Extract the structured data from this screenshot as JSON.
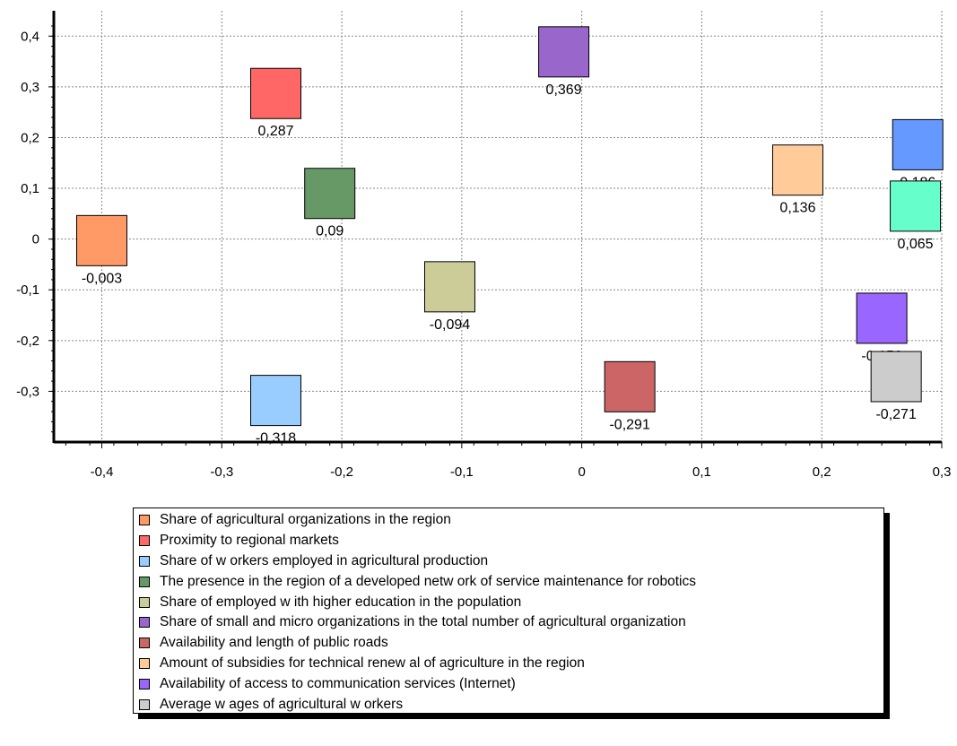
{
  "chart_data": {
    "type": "scatter",
    "title": "",
    "xlabel": "",
    "ylabel": "",
    "xlim": [
      -0.44,
      0.3
    ],
    "ylim": [
      -0.4,
      0.45
    ],
    "x_ticks": [
      "-0,4",
      "-0,3",
      "-0,2",
      "-0,1",
      "0",
      "0,1",
      "0,2",
      "0,3"
    ],
    "y_ticks": [
      "0,4",
      "0,3",
      "0,2",
      "0,1",
      "0",
      "-0,1",
      "-0,2",
      "-0,3"
    ],
    "grid": true,
    "marker": "square",
    "legend_position": "bottom",
    "points": [
      {
        "x": -0.4,
        "y": -0.003,
        "label": "-0,003",
        "color": "#ff9966"
      },
      {
        "x": -0.255,
        "y": 0.287,
        "label": "0,287",
        "color": "#ff6666"
      },
      {
        "x": -0.255,
        "y": -0.318,
        "label": "-0,318",
        "color": "#99ccff"
      },
      {
        "x": -0.21,
        "y": 0.09,
        "label": "0,09",
        "color": "#669966"
      },
      {
        "x": -0.11,
        "y": -0.094,
        "label": "-0,094",
        "color": "#cccc99"
      },
      {
        "x": -0.015,
        "y": 0.369,
        "label": "0,369",
        "color": "#9966cc"
      },
      {
        "x": 0.04,
        "y": -0.291,
        "label": "-0,291",
        "color": "#cc6666"
      },
      {
        "x": 0.18,
        "y": 0.136,
        "label": "0,136",
        "color": "#ffcc99"
      },
      {
        "x": 0.28,
        "y": 0.186,
        "label": "0,186",
        "color": "#6699ff"
      },
      {
        "x": 0.278,
        "y": 0.065,
        "label": "0,065",
        "color": "#66ffcc"
      },
      {
        "x": 0.25,
        "y": -0.156,
        "label": "-0,156",
        "color": "#9966ff"
      },
      {
        "x": 0.262,
        "y": -0.271,
        "label": "-0,271",
        "color": "#cccccc"
      }
    ]
  },
  "legend": {
    "items": [
      {
        "label": "Share of agricultural organizations in the region",
        "color": "#ff9966"
      },
      {
        "label": "Proximity to regional markets",
        "color": "#ff6666"
      },
      {
        "label": "Share of w orkers employed in agricultural production",
        "color": "#99ccff"
      },
      {
        "label": "The presence in the region of a developed netw ork of service maintenance for robotics",
        "color": "#669966"
      },
      {
        "label": "Share of employed w ith higher education in the population",
        "color": "#cccc99"
      },
      {
        "label": "Share of small and micro organizations in the total number of agricultural organization",
        "color": "#9966cc"
      },
      {
        "label": "Availability and length of public roads",
        "color": "#cc6666"
      },
      {
        "label": "Amount of subsidies for technical renew al of agriculture in the region",
        "color": "#ffcc99"
      },
      {
        "label": "Availability of access to communication services (Internet)",
        "color": "#9966ff"
      },
      {
        "label": "Average w ages of agricultural w orkers",
        "color": "#cccccc"
      }
    ]
  }
}
